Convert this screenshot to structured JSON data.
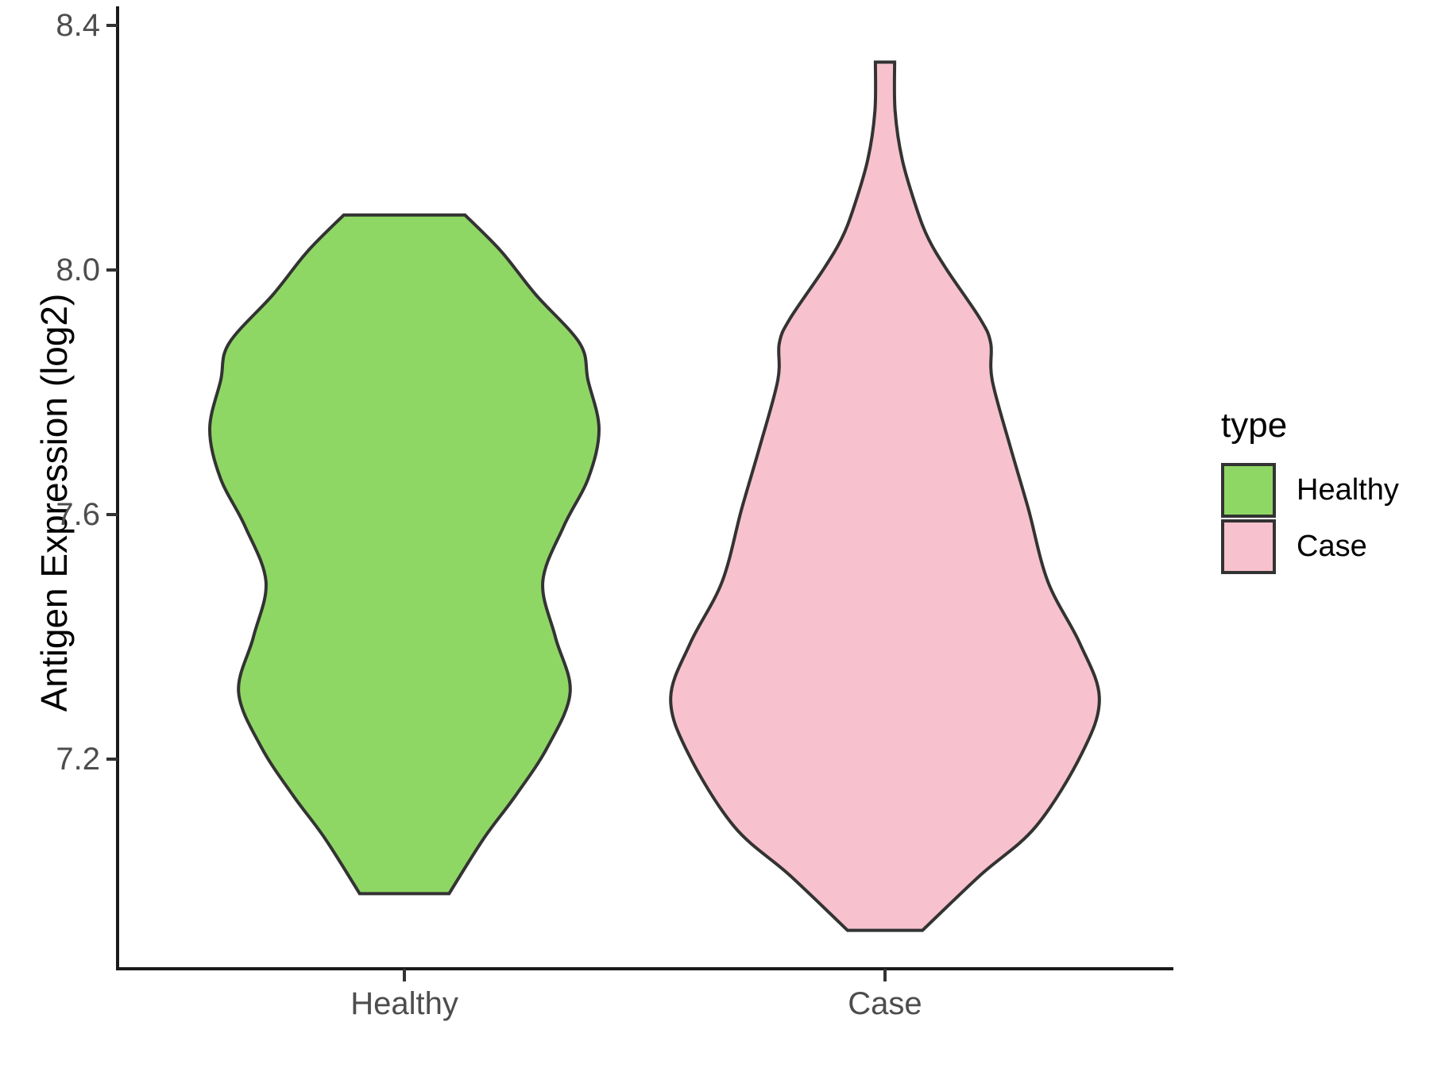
{
  "figure": {
    "background": "#ffffff",
    "panel": {
      "grid": false,
      "axis_line_color": "#1a1a1a",
      "tick_color": "#333333",
      "tick_label_color": "#4d4d4d"
    }
  },
  "y_axis": {
    "title": "Antigen Expression (log2)",
    "ticks": [
      "8.4",
      "8.0",
      "7.6",
      "7.2"
    ],
    "range": [
      6.85,
      8.44
    ]
  },
  "x_axis": {
    "categories": [
      "Healthy",
      "Case"
    ]
  },
  "legend": {
    "title": "type",
    "position": "right",
    "items": [
      {
        "label": "Healthy",
        "color": "#8FD765"
      },
      {
        "label": "Case",
        "color": "#F7C2CD"
      }
    ]
  },
  "chart_data": {
    "type": "violin",
    "title": "",
    "xlabel": "",
    "ylabel": "Antigen Expression (log2)",
    "categories": [
      "Healthy",
      "Case"
    ],
    "ylim": [
      6.85,
      8.44
    ],
    "grid": false,
    "legend_position": "right",
    "series": [
      {
        "name": "Healthy",
        "fill": "#8FD765",
        "outline": "#333333",
        "y_min": 6.98,
        "y_max": 8.09,
        "widest_at": 7.74,
        "profile": [
          {
            "y": 8.09,
            "w": 0.126
          },
          {
            "y": 8.03,
            "w": 0.202
          },
          {
            "y": 7.96,
            "w": 0.273
          },
          {
            "y": 7.88,
            "w": 0.365
          },
          {
            "y": 7.82,
            "w": 0.382
          },
          {
            "y": 7.74,
            "w": 0.405
          },
          {
            "y": 7.66,
            "w": 0.383
          },
          {
            "y": 7.58,
            "w": 0.331
          },
          {
            "y": 7.49,
            "w": 0.288
          },
          {
            "y": 7.4,
            "w": 0.314
          },
          {
            "y": 7.31,
            "w": 0.345
          },
          {
            "y": 7.22,
            "w": 0.298
          },
          {
            "y": 7.14,
            "w": 0.231
          },
          {
            "y": 7.07,
            "w": 0.165
          },
          {
            "y": 6.98,
            "w": 0.093
          }
        ]
      },
      {
        "name": "Case",
        "fill": "#F7C2CD",
        "outline": "#333333",
        "y_min": 6.92,
        "y_max": 8.34,
        "widest_at": 7.3,
        "profile": [
          {
            "y": 8.34,
            "w": 0.02
          },
          {
            "y": 8.26,
            "w": 0.021
          },
          {
            "y": 8.18,
            "w": 0.036
          },
          {
            "y": 8.1,
            "w": 0.066
          },
          {
            "y": 8.05,
            "w": 0.091
          },
          {
            "y": 8.0,
            "w": 0.129
          },
          {
            "y": 7.92,
            "w": 0.198
          },
          {
            "y": 7.88,
            "w": 0.22
          },
          {
            "y": 7.82,
            "w": 0.223
          },
          {
            "y": 7.71,
            "w": 0.261
          },
          {
            "y": 7.61,
            "w": 0.298
          },
          {
            "y": 7.49,
            "w": 0.339
          },
          {
            "y": 7.39,
            "w": 0.405
          },
          {
            "y": 7.3,
            "w": 0.446
          },
          {
            "y": 7.21,
            "w": 0.41
          },
          {
            "y": 7.09,
            "w": 0.314
          },
          {
            "y": 7.01,
            "w": 0.198
          },
          {
            "y": 6.92,
            "w": 0.078
          }
        ]
      }
    ]
  }
}
